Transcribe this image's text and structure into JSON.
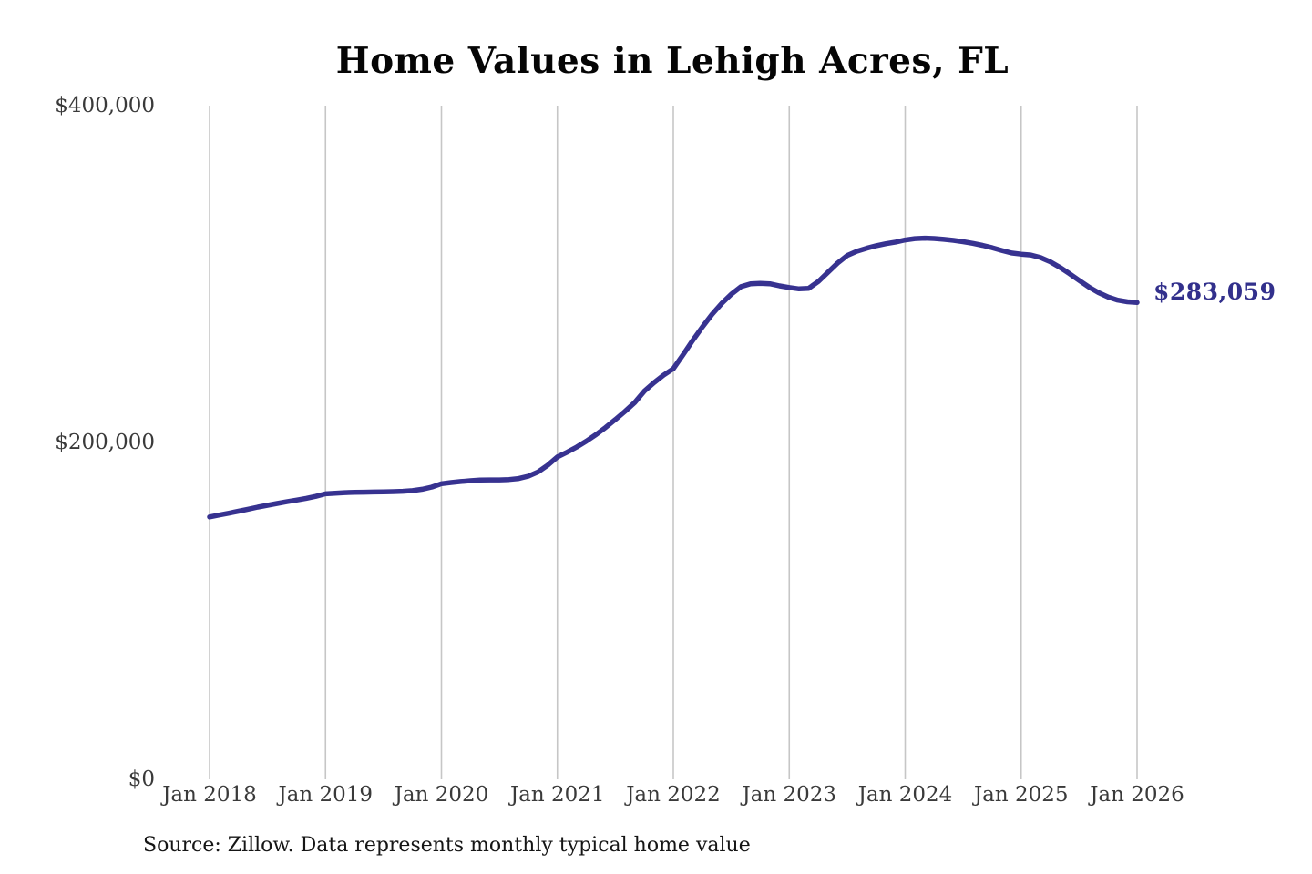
{
  "title": "Home Values in Lehigh Acres, FL",
  "source_note": "Source: Zillow. Data represents monthly typical home value",
  "annotation": {
    "label": "$283,059"
  },
  "colors": {
    "line": "#373290",
    "annotation": "#32308c",
    "gridline": "#c6c6c6",
    "axis_text": "#3a3a3a",
    "title_text": "#050505",
    "source_text": "#151515",
    "background": "#ffffff"
  },
  "chart_data": {
    "type": "line",
    "title": "Home Values in Lehigh Acres, FL",
    "xlabel": "",
    "ylabel": "",
    "ylim": [
      0,
      400000
    ],
    "grid": "vertical-only",
    "legend": "none",
    "frequency": "monthly",
    "x_start_month": "2018-01",
    "x_end_month": "2026-01",
    "x_tick_labels": [
      "Jan 2018",
      "Jan 2019",
      "Jan 2020",
      "Jan 2021",
      "Jan 2022",
      "Jan 2023",
      "Jan 2024",
      "Jan 2025",
      "Jan 2026"
    ],
    "y_ticks": [
      {
        "label": "$0",
        "value": 0
      },
      {
        "label": "$200,000",
        "value": 200000
      },
      {
        "label": "$400,000",
        "value": 400000
      }
    ],
    "end_label": "$283,059",
    "end_value": 283059,
    "series": [
      {
        "name": "Monthly typical home value",
        "values": [
          155800,
          156900,
          158000,
          159200,
          160400,
          161600,
          162700,
          163800,
          164800,
          165800,
          166800,
          168000,
          169500,
          169900,
          170200,
          170400,
          170500,
          170600,
          170700,
          170800,
          171000,
          171400,
          172200,
          173500,
          175500,
          176200,
          176800,
          177300,
          177700,
          177800,
          177800,
          178000,
          178600,
          180000,
          182500,
          186500,
          191400,
          194200,
          197300,
          200800,
          204700,
          209000,
          213600,
          218500,
          223700,
          230500,
          235500,
          240000,
          243800,
          252000,
          260500,
          268500,
          276000,
          282500,
          288000,
          292500,
          294200,
          294500,
          294200,
          293000,
          292000,
          291200,
          291500,
          295500,
          301000,
          306500,
          311000,
          313500,
          315300,
          316800,
          318000,
          319000,
          320200,
          321000,
          321300,
          321100,
          320600,
          320000,
          319200,
          318200,
          317000,
          315600,
          314000,
          312500,
          311800,
          311300,
          309800,
          307300,
          304000,
          300200,
          296200,
          292300,
          289000,
          286300,
          284500,
          283500,
          283059
        ]
      }
    ]
  }
}
